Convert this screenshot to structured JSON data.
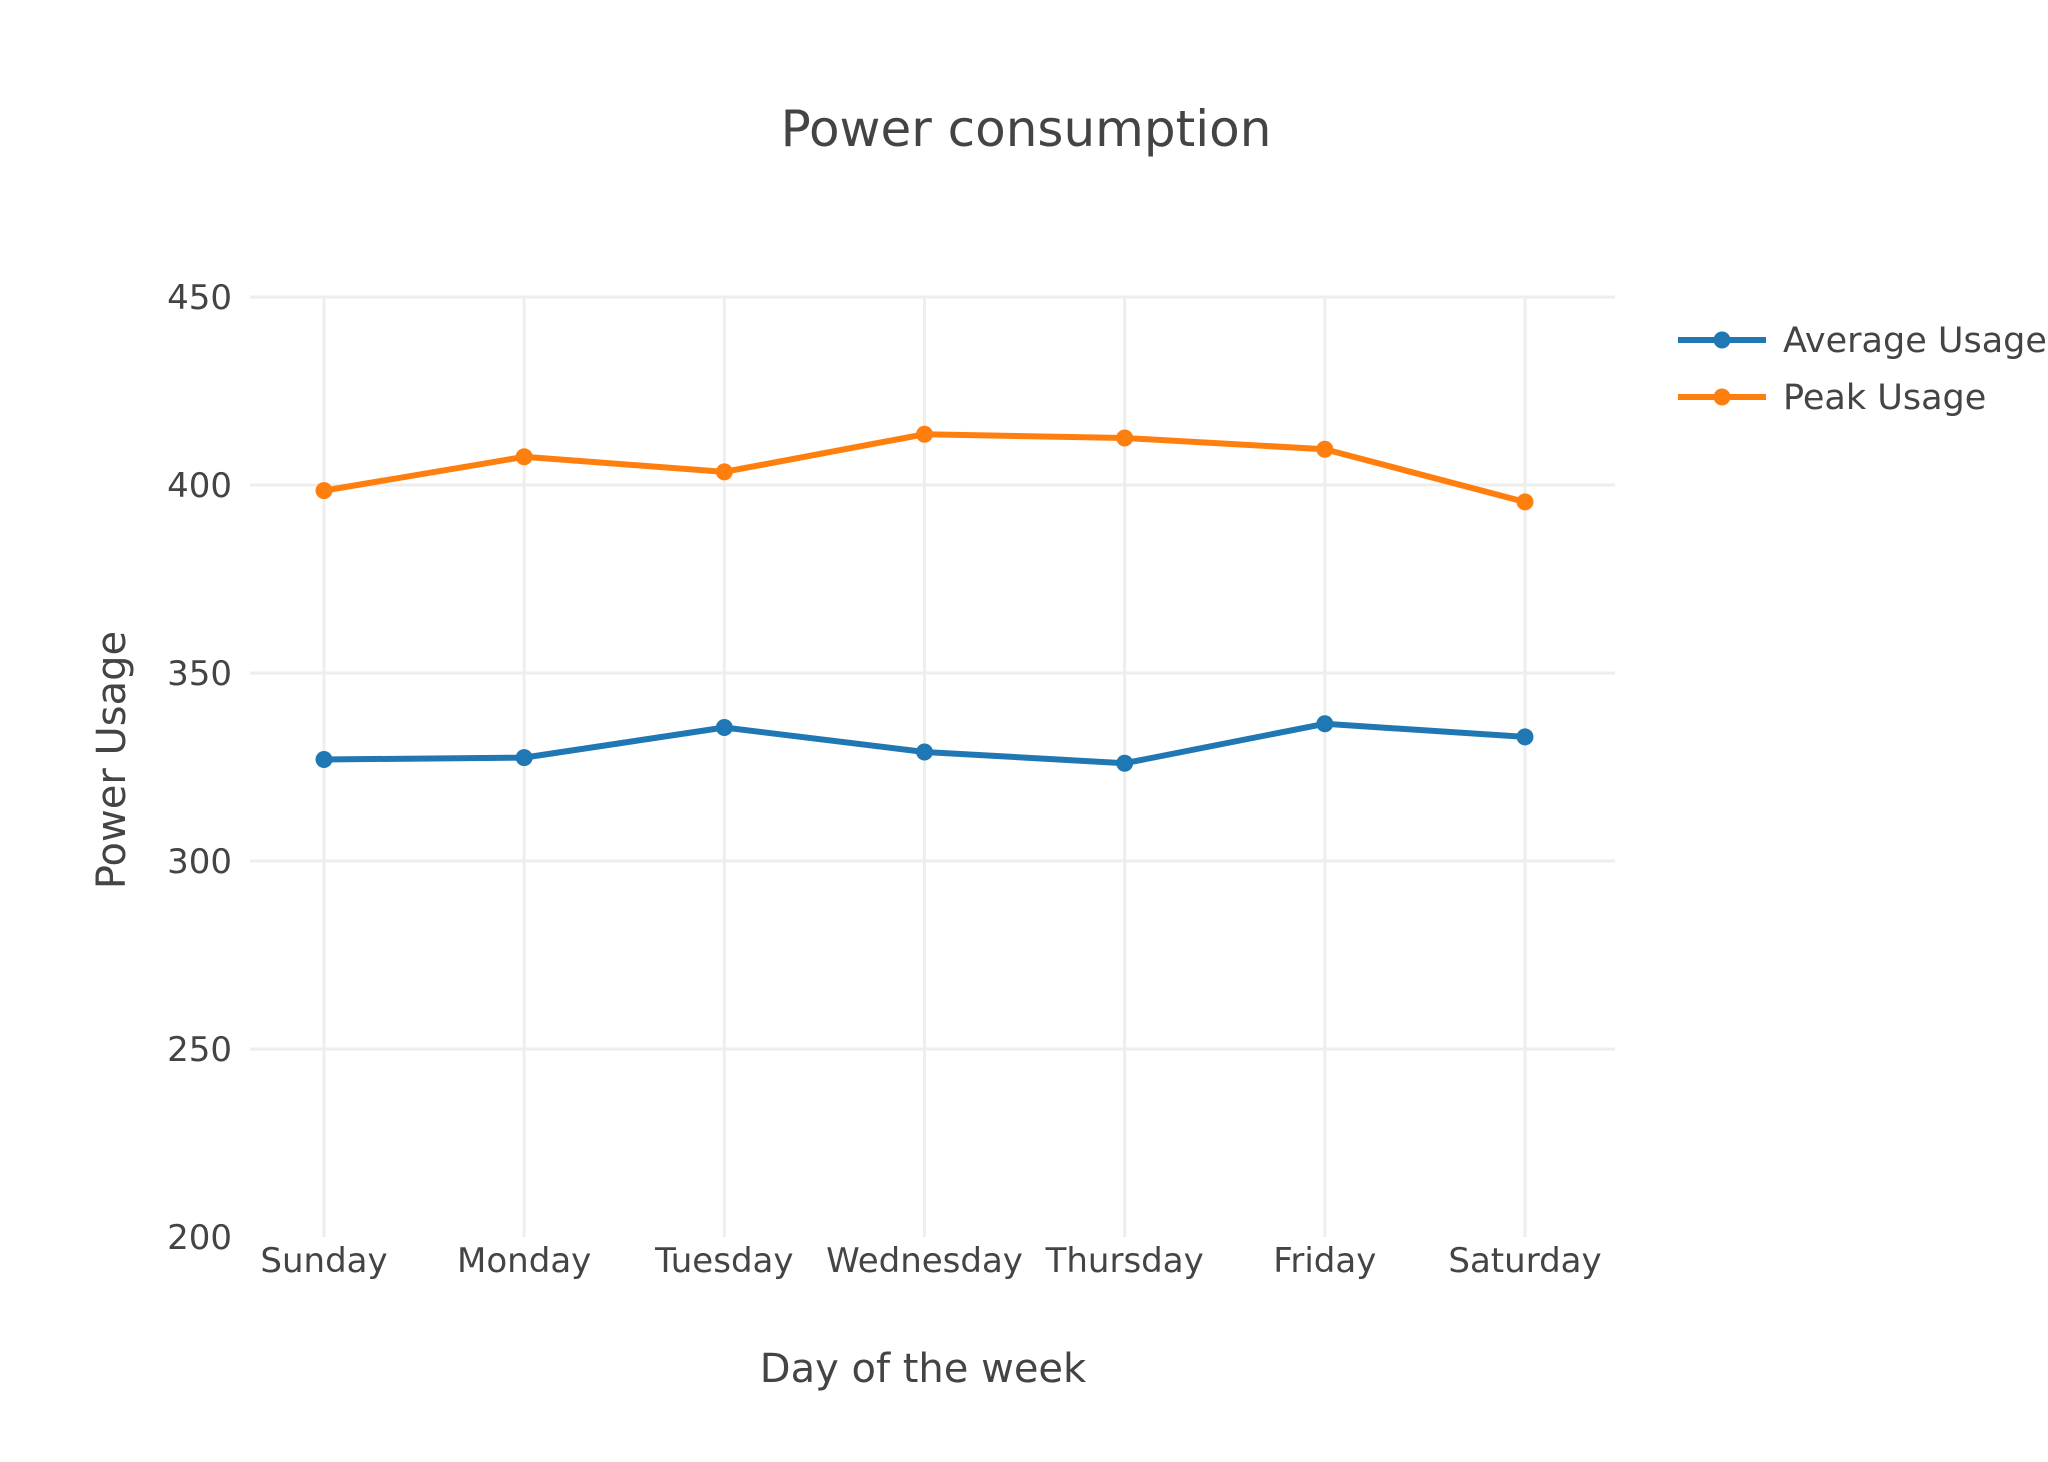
{
  "chart_data": {
    "type": "line",
    "title": "Power consumption",
    "xlabel": "Day of the week",
    "ylabel": "Power Usage",
    "categories": [
      "Sunday",
      "Monday",
      "Tuesday",
      "Wednesday",
      "Thursday",
      "Friday",
      "Saturday"
    ],
    "ylim": [
      200,
      450
    ],
    "yticks": [
      200,
      250,
      300,
      350,
      400,
      450
    ],
    "grid": true,
    "legend_position": "top-right",
    "series": [
      {
        "name": "Average Usage",
        "color": "#1f77b4",
        "values": [
          327,
          327.5,
          335.5,
          329,
          326,
          336.5,
          333
        ]
      },
      {
        "name": "Peak Usage",
        "color": "#ff7f0e",
        "values": [
          398.5,
          407.5,
          403.5,
          413.5,
          412.5,
          409.5,
          395.5
        ]
      }
    ]
  }
}
